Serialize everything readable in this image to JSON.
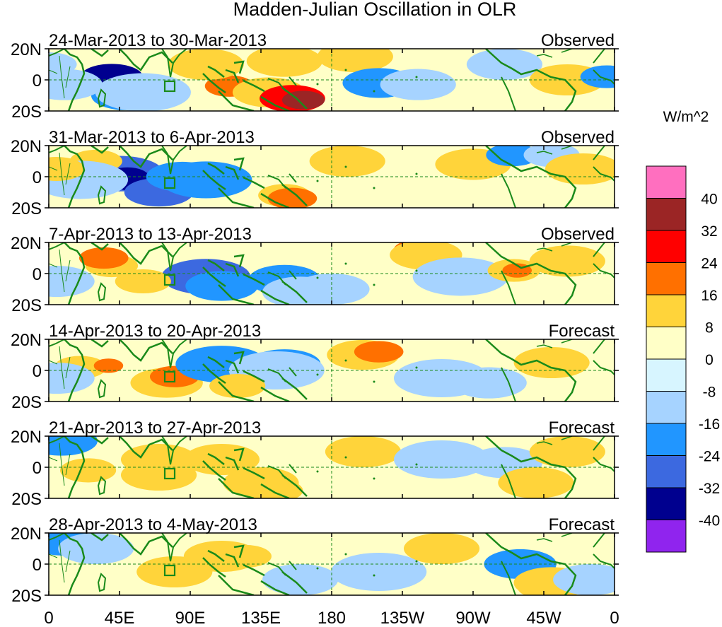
{
  "title": "Madden-Julian Oscillation in OLR",
  "units": "W/m^2",
  "colorbar": {
    "colors": [
      "#ff6fbf",
      "#9b2525",
      "#ff0000",
      "#ff7000",
      "#ffd43a",
      "#ffffc7",
      "#d7f5ff",
      "#a6d3ff",
      "#2196ff",
      "#3c69e0",
      "#00008f",
      "#9024ee"
    ],
    "labels": [
      "40",
      "32",
      "24",
      "16",
      "8",
      "0",
      "-8",
      "-16",
      "-24",
      "-32",
      "-40"
    ]
  },
  "panels": [
    {
      "dates": "24-Mar-2013 to 30-Mar-2013",
      "kind": "Observed"
    },
    {
      "dates": "31-Mar-2013 to 6-Apr-2013",
      "kind": "Observed"
    },
    {
      "dates": "7-Apr-2013 to 13-Apr-2013",
      "kind": "Observed"
    },
    {
      "dates": "14-Apr-2013 to 20-Apr-2013",
      "kind": "Forecast"
    },
    {
      "dates": "21-Apr-2013 to 27-Apr-2013",
      "kind": "Forecast"
    },
    {
      "dates": "28-Apr-2013 to 4-May-2013",
      "kind": "Forecast"
    }
  ],
  "lat_labels": [
    "20N",
    "0",
    "20S"
  ],
  "lon_labels": [
    "0",
    "45E",
    "90E",
    "135E",
    "180",
    "135W",
    "90W",
    "45W",
    "0"
  ],
  "anomalies": [
    [
      [
        0,
        10,
        -8,
        2
      ],
      [
        38,
        1,
        -32,
        2
      ],
      [
        40,
        2,
        -40,
        3
      ],
      [
        50,
        -10,
        -16,
        3
      ],
      [
        60,
        -8,
        -8,
        4
      ],
      [
        115,
        -4,
        24,
        2
      ],
      [
        140,
        -8,
        16,
        3
      ],
      [
        155,
        -12,
        32,
        3
      ],
      [
        162,
        -13,
        40,
        2
      ],
      [
        100,
        10,
        8,
        3
      ],
      [
        150,
        12,
        8,
        3
      ],
      [
        195,
        15,
        8,
        3
      ],
      [
        210,
        -2,
        -16,
        3
      ],
      [
        235,
        -3,
        -8,
        3
      ],
      [
        290,
        10,
        -8,
        3
      ],
      [
        330,
        0,
        8,
        3
      ],
      [
        355,
        2,
        -16,
        2
      ],
      [
        10,
        -3,
        -8,
        3
      ]
    ],
    [
      [
        45,
        2,
        -24,
        4
      ],
      [
        50,
        0,
        -40,
        2
      ],
      [
        55,
        -3,
        -32,
        2
      ],
      [
        70,
        -10,
        -24,
        3
      ],
      [
        85,
        0,
        -16,
        3
      ],
      [
        100,
        -2,
        -16,
        4
      ],
      [
        150,
        -12,
        16,
        2
      ],
      [
        155,
        -14,
        24,
        2
      ],
      [
        30,
        10,
        16,
        2
      ],
      [
        190,
        10,
        8,
        3
      ],
      [
        270,
        8,
        8,
        3
      ],
      [
        295,
        14,
        -16,
        2
      ],
      [
        320,
        14,
        -8,
        2
      ],
      [
        340,
        5,
        8,
        3
      ],
      [
        20,
        -2,
        -8,
        4
      ],
      [
        5,
        5,
        8,
        2
      ]
    ],
    [
      [
        40,
        5,
        16,
        2
      ],
      [
        35,
        10,
        24,
        2
      ],
      [
        100,
        -2,
        -24,
        4
      ],
      [
        110,
        -8,
        -16,
        3
      ],
      [
        150,
        -4,
        -16,
        3
      ],
      [
        160,
        -12,
        -8,
        3
      ],
      [
        235,
        15,
        24,
        2
      ],
      [
        240,
        12,
        16,
        3
      ],
      [
        262,
        -2,
        -8,
        4
      ],
      [
        296,
        2,
        16,
        2
      ],
      [
        298,
        2,
        24,
        1
      ],
      [
        330,
        8,
        8,
        3
      ],
      [
        60,
        -5,
        8,
        2
      ],
      [
        5,
        -5,
        -8,
        3
      ],
      [
        180,
        -10,
        -8,
        3
      ]
    ],
    [
      [
        20,
        2,
        16,
        2
      ],
      [
        38,
        3,
        24,
        1
      ],
      [
        75,
        -8,
        16,
        3
      ],
      [
        80,
        -4,
        24,
        2
      ],
      [
        110,
        4,
        -16,
        4
      ],
      [
        150,
        4,
        -16,
        3
      ],
      [
        145,
        0,
        -8,
        4
      ],
      [
        200,
        10,
        16,
        3
      ],
      [
        210,
        12,
        24,
        2
      ],
      [
        250,
        -5,
        -8,
        4
      ],
      [
        280,
        -8,
        -8,
        3
      ],
      [
        320,
        5,
        8,
        3
      ],
      [
        5,
        -5,
        -8,
        3
      ],
      [
        120,
        -10,
        8,
        2
      ]
    ],
    [
      [
        8,
        17,
        -16,
        3
      ],
      [
        70,
        5,
        8,
        3
      ],
      [
        75,
        6,
        16,
        2
      ],
      [
        70,
        -5,
        8,
        3
      ],
      [
        110,
        5,
        8,
        3
      ],
      [
        135,
        -10,
        8,
        3
      ],
      [
        145,
        -15,
        16,
        2
      ],
      [
        200,
        10,
        8,
        3
      ],
      [
        250,
        5,
        -8,
        4
      ],
      [
        290,
        3,
        -8,
        3
      ],
      [
        310,
        -10,
        8,
        3
      ],
      [
        330,
        10,
        8,
        3
      ],
      [
        25,
        -2,
        8,
        2
      ]
    ],
    [
      [
        10,
        15,
        -16,
        3
      ],
      [
        30,
        10,
        -8,
        3
      ],
      [
        80,
        -5,
        8,
        3
      ],
      [
        110,
        5,
        8,
        3
      ],
      [
        125,
        5,
        16,
        2
      ],
      [
        160,
        -10,
        -8,
        3
      ],
      [
        210,
        -5,
        -8,
        4
      ],
      [
        250,
        10,
        8,
        3
      ],
      [
        300,
        0,
        -16,
        3
      ],
      [
        315,
        -15,
        16,
        2
      ],
      [
        320,
        -12,
        8,
        3
      ],
      [
        345,
        -10,
        -8,
        3
      ]
    ]
  ]
}
